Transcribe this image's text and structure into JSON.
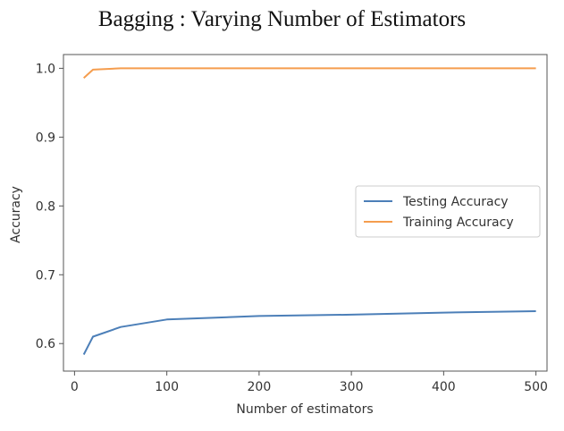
{
  "chart_data": {
    "type": "line",
    "title": "Bagging : Varying Number of Estimators",
    "xlabel": "Number of estimators",
    "ylabel": "Accuracy",
    "xlim": [
      -12,
      512
    ],
    "ylim": [
      0.56,
      1.02
    ],
    "xticks": [
      0,
      100,
      200,
      300,
      400,
      500
    ],
    "yticks": [
      0.6,
      0.7,
      0.8,
      0.9,
      1.0
    ],
    "xtick_labels": [
      "0",
      "100",
      "200",
      "300",
      "400",
      "500"
    ],
    "ytick_labels": [
      "0.6",
      "0.7",
      "0.8",
      "0.9",
      "1.0"
    ],
    "grid": false,
    "legend_position": "center-right",
    "x": [
      10,
      20,
      50,
      100,
      200,
      300,
      400,
      500
    ],
    "series": [
      {
        "name": "Testing Accuracy",
        "color": "#4c7fb8",
        "values": [
          0.584,
          0.61,
          0.624,
          0.635,
          0.64,
          0.642,
          0.645,
          0.647
        ]
      },
      {
        "name": "Training Accuracy",
        "color": "#f59d4e",
        "values": [
          0.986,
          0.998,
          1.0,
          1.0,
          1.0,
          1.0,
          1.0,
          1.0
        ]
      }
    ]
  }
}
